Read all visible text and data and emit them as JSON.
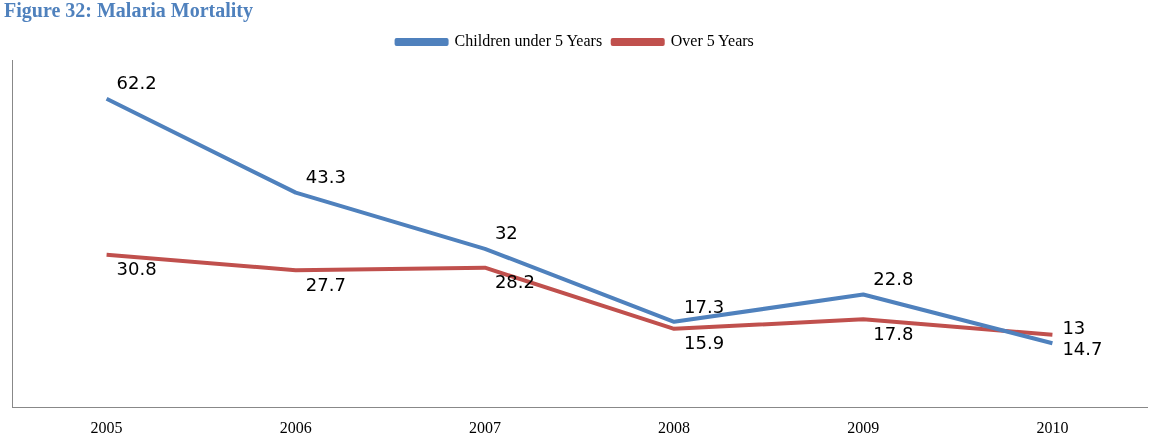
{
  "chart_data": {
    "type": "line",
    "title": "Figure 32: Malaria Mortality",
    "categories": [
      "2005",
      "2006",
      "2007",
      "2008",
      "2009",
      "2010"
    ],
    "series": [
      {
        "name": "Children under 5 Years",
        "color": "#4f81bd",
        "values": [
          62.2,
          43.3,
          32,
          17.3,
          22.8,
          13
        ]
      },
      {
        "name": "Over 5 Years",
        "color": "#c0504d",
        "values": [
          30.8,
          27.7,
          28.2,
          15.9,
          17.8,
          14.7
        ]
      }
    ],
    "data_labels": true,
    "legend": "top",
    "grid": false,
    "marker": "none",
    "line_style": "solid"
  }
}
